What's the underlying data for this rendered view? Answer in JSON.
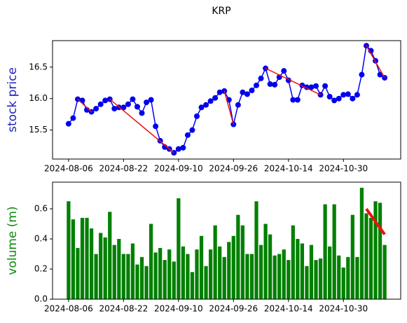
{
  "chart_data": [
    {
      "type": "line",
      "title": "KRP",
      "ylabel": "stock price",
      "ylabel_color": "#1f1fbf",
      "color": "#0000ee",
      "trend_color": "#ee1111",
      "categories": [
        "2024-08-06",
        null,
        null,
        null,
        null,
        null,
        null,
        null,
        null,
        null,
        null,
        null,
        "2024-08-22",
        null,
        null,
        null,
        null,
        null,
        null,
        null,
        null,
        null,
        null,
        null,
        "2024-09-10",
        null,
        null,
        null,
        null,
        null,
        null,
        null,
        null,
        null,
        null,
        null,
        "2024-09-26",
        null,
        null,
        null,
        null,
        null,
        null,
        null,
        null,
        null,
        null,
        null,
        "2024-10-14",
        null,
        null,
        null,
        null,
        null,
        null,
        null,
        null,
        null,
        null,
        null,
        "2024-10-30",
        null,
        null,
        null,
        null,
        null,
        null,
        null,
        null,
        null
      ],
      "values": [
        15.6,
        15.69,
        15.99,
        15.97,
        15.82,
        15.79,
        15.84,
        15.91,
        15.97,
        15.99,
        15.84,
        15.86,
        15.86,
        15.91,
        15.99,
        15.87,
        15.77,
        15.94,
        15.98,
        15.56,
        15.33,
        15.23,
        15.2,
        15.14,
        15.2,
        15.22,
        15.42,
        15.5,
        15.72,
        15.86,
        15.9,
        15.96,
        16.01,
        16.1,
        16.12,
        15.98,
        15.59,
        15.9,
        16.1,
        16.07,
        16.13,
        16.21,
        16.32,
        16.48,
        16.23,
        16.22,
        16.34,
        16.44,
        16.29,
        15.98,
        15.98,
        16.21,
        16.18,
        16.18,
        16.2,
        16.06,
        16.2,
        16.03,
        15.97,
        16.0,
        16.06,
        16.07,
        16.0,
        16.06,
        16.38,
        16.84,
        16.76,
        16.6,
        16.38,
        16.33
      ],
      "trend_segments": [
        {
          "x": [
            2,
            5
          ],
          "values": [
            15.99,
            15.79
          ]
        },
        {
          "x": [
            9,
            23
          ],
          "values": [
            15.99,
            15.14
          ]
        },
        {
          "x": [
            34,
            36
          ],
          "values": [
            16.12,
            15.59
          ]
        },
        {
          "x": [
            43,
            55
          ],
          "values": [
            16.48,
            16.06
          ]
        },
        {
          "x": [
            65,
            69
          ],
          "values": [
            16.84,
            16.33
          ]
        }
      ],
      "xlim": [
        -3.5,
        72.5
      ],
      "ylim": [
        15.04,
        16.92
      ],
      "yticks": [
        {
          "value": 15.5,
          "label": "15.5"
        },
        {
          "value": 16.0,
          "label": "16.0"
        },
        {
          "value": 16.5,
          "label": "16.5"
        }
      ]
    },
    {
      "type": "bar",
      "ylabel": "volume (m)",
      "ylabel_color": "#0a8a0a",
      "color": "#008000",
      "trend_color": "#ee1111",
      "categories": [
        "2024-08-06",
        null,
        null,
        null,
        null,
        null,
        null,
        null,
        null,
        null,
        null,
        null,
        "2024-08-22",
        null,
        null,
        null,
        null,
        null,
        null,
        null,
        null,
        null,
        null,
        null,
        "2024-09-10",
        null,
        null,
        null,
        null,
        null,
        null,
        null,
        null,
        null,
        null,
        null,
        "2024-09-26",
        null,
        null,
        null,
        null,
        null,
        null,
        null,
        null,
        null,
        null,
        null,
        "2024-10-14",
        null,
        null,
        null,
        null,
        null,
        null,
        null,
        null,
        null,
        null,
        null,
        "2024-10-30",
        null,
        null,
        null,
        null,
        null,
        null,
        null,
        null,
        null
      ],
      "values": [
        0.65,
        0.53,
        0.34,
        0.54,
        0.54,
        0.47,
        0.3,
        0.44,
        0.41,
        0.58,
        0.36,
        0.4,
        0.3,
        0.3,
        0.37,
        0.23,
        0.28,
        0.22,
        0.5,
        0.31,
        0.34,
        0.26,
        0.33,
        0.25,
        0.67,
        0.35,
        0.3,
        0.18,
        0.33,
        0.42,
        0.22,
        0.33,
        0.49,
        0.35,
        0.28,
        0.38,
        0.42,
        0.56,
        0.49,
        0.3,
        0.3,
        0.65,
        0.36,
        0.5,
        0.43,
        0.29,
        0.3,
        0.33,
        0.26,
        0.49,
        0.4,
        0.37,
        0.22,
        0.36,
        0.26,
        0.27,
        0.63,
        0.35,
        0.63,
        0.29,
        0.21,
        0.28,
        0.56,
        0.28,
        0.74,
        0.57,
        0.54,
        0.65,
        0.64,
        0.36
      ],
      "trend_segments": [
        {
          "x": [
            65,
            69
          ],
          "values": [
            0.6,
            0.43
          ]
        }
      ],
      "xlim": [
        -3.5,
        72.5
      ],
      "ylim": [
        0,
        0.777
      ],
      "yticks": [
        {
          "value": 0,
          "label": "0.0"
        },
        {
          "value": 0.2,
          "label": "0.2"
        },
        {
          "value": 0.4,
          "label": "0.4"
        },
        {
          "value": 0.6,
          "label": "0.6"
        }
      ]
    }
  ]
}
